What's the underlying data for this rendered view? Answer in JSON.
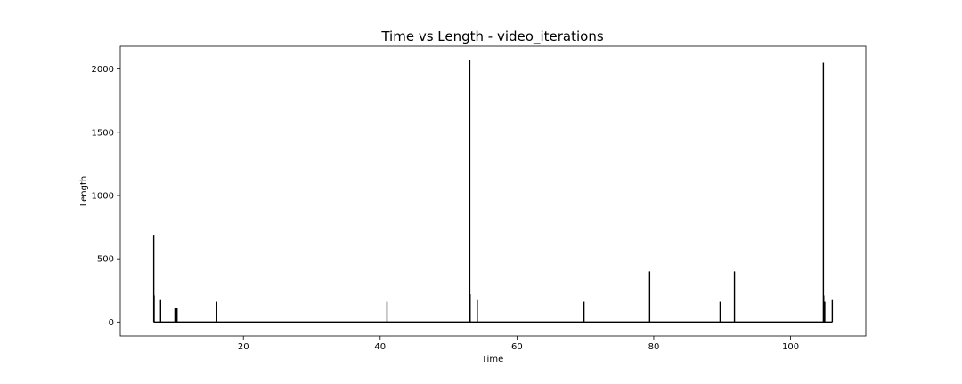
{
  "chart_data": {
    "type": "line",
    "title": "Time vs Length - video_iterations",
    "xlabel": "Time",
    "ylabel": "Length",
    "xlim": [
      2,
      111
    ],
    "ylim": [
      -110,
      2180
    ],
    "xticks": [
      20,
      40,
      60,
      80,
      100
    ],
    "yticks": [
      0,
      500,
      1000,
      1500,
      2000
    ],
    "xtick_labels": [
      "20",
      "40",
      "60",
      "80",
      "100"
    ],
    "ytick_labels": [
      "0",
      "500",
      "1000",
      "1500",
      "2000"
    ],
    "grid": false,
    "legend": "none",
    "line_color": "#000000",
    "spikes": [
      {
        "x": 6.9,
        "y": 690
      },
      {
        "x": 6.95,
        "y": 210
      },
      {
        "x": 7.9,
        "y": 180
      },
      {
        "x": 10.0,
        "y": 110
      },
      {
        "x": 10.1,
        "y": 110
      },
      {
        "x": 10.2,
        "y": 110
      },
      {
        "x": 10.3,
        "y": 110
      },
      {
        "x": 16.1,
        "y": 160
      },
      {
        "x": 41.0,
        "y": 160
      },
      {
        "x": 53.1,
        "y": 2070
      },
      {
        "x": 53.15,
        "y": 220
      },
      {
        "x": 54.2,
        "y": 180
      },
      {
        "x": 69.8,
        "y": 160
      },
      {
        "x": 79.4,
        "y": 400
      },
      {
        "x": 89.7,
        "y": 160
      },
      {
        "x": 91.8,
        "y": 400
      },
      {
        "x": 104.8,
        "y": 2050
      },
      {
        "x": 104.85,
        "y": 210
      },
      {
        "x": 105.0,
        "y": 160
      },
      {
        "x": 106.1,
        "y": 180
      }
    ],
    "baseline": {
      "x_start": 6.9,
      "x_end": 106.1,
      "y": 0
    }
  }
}
